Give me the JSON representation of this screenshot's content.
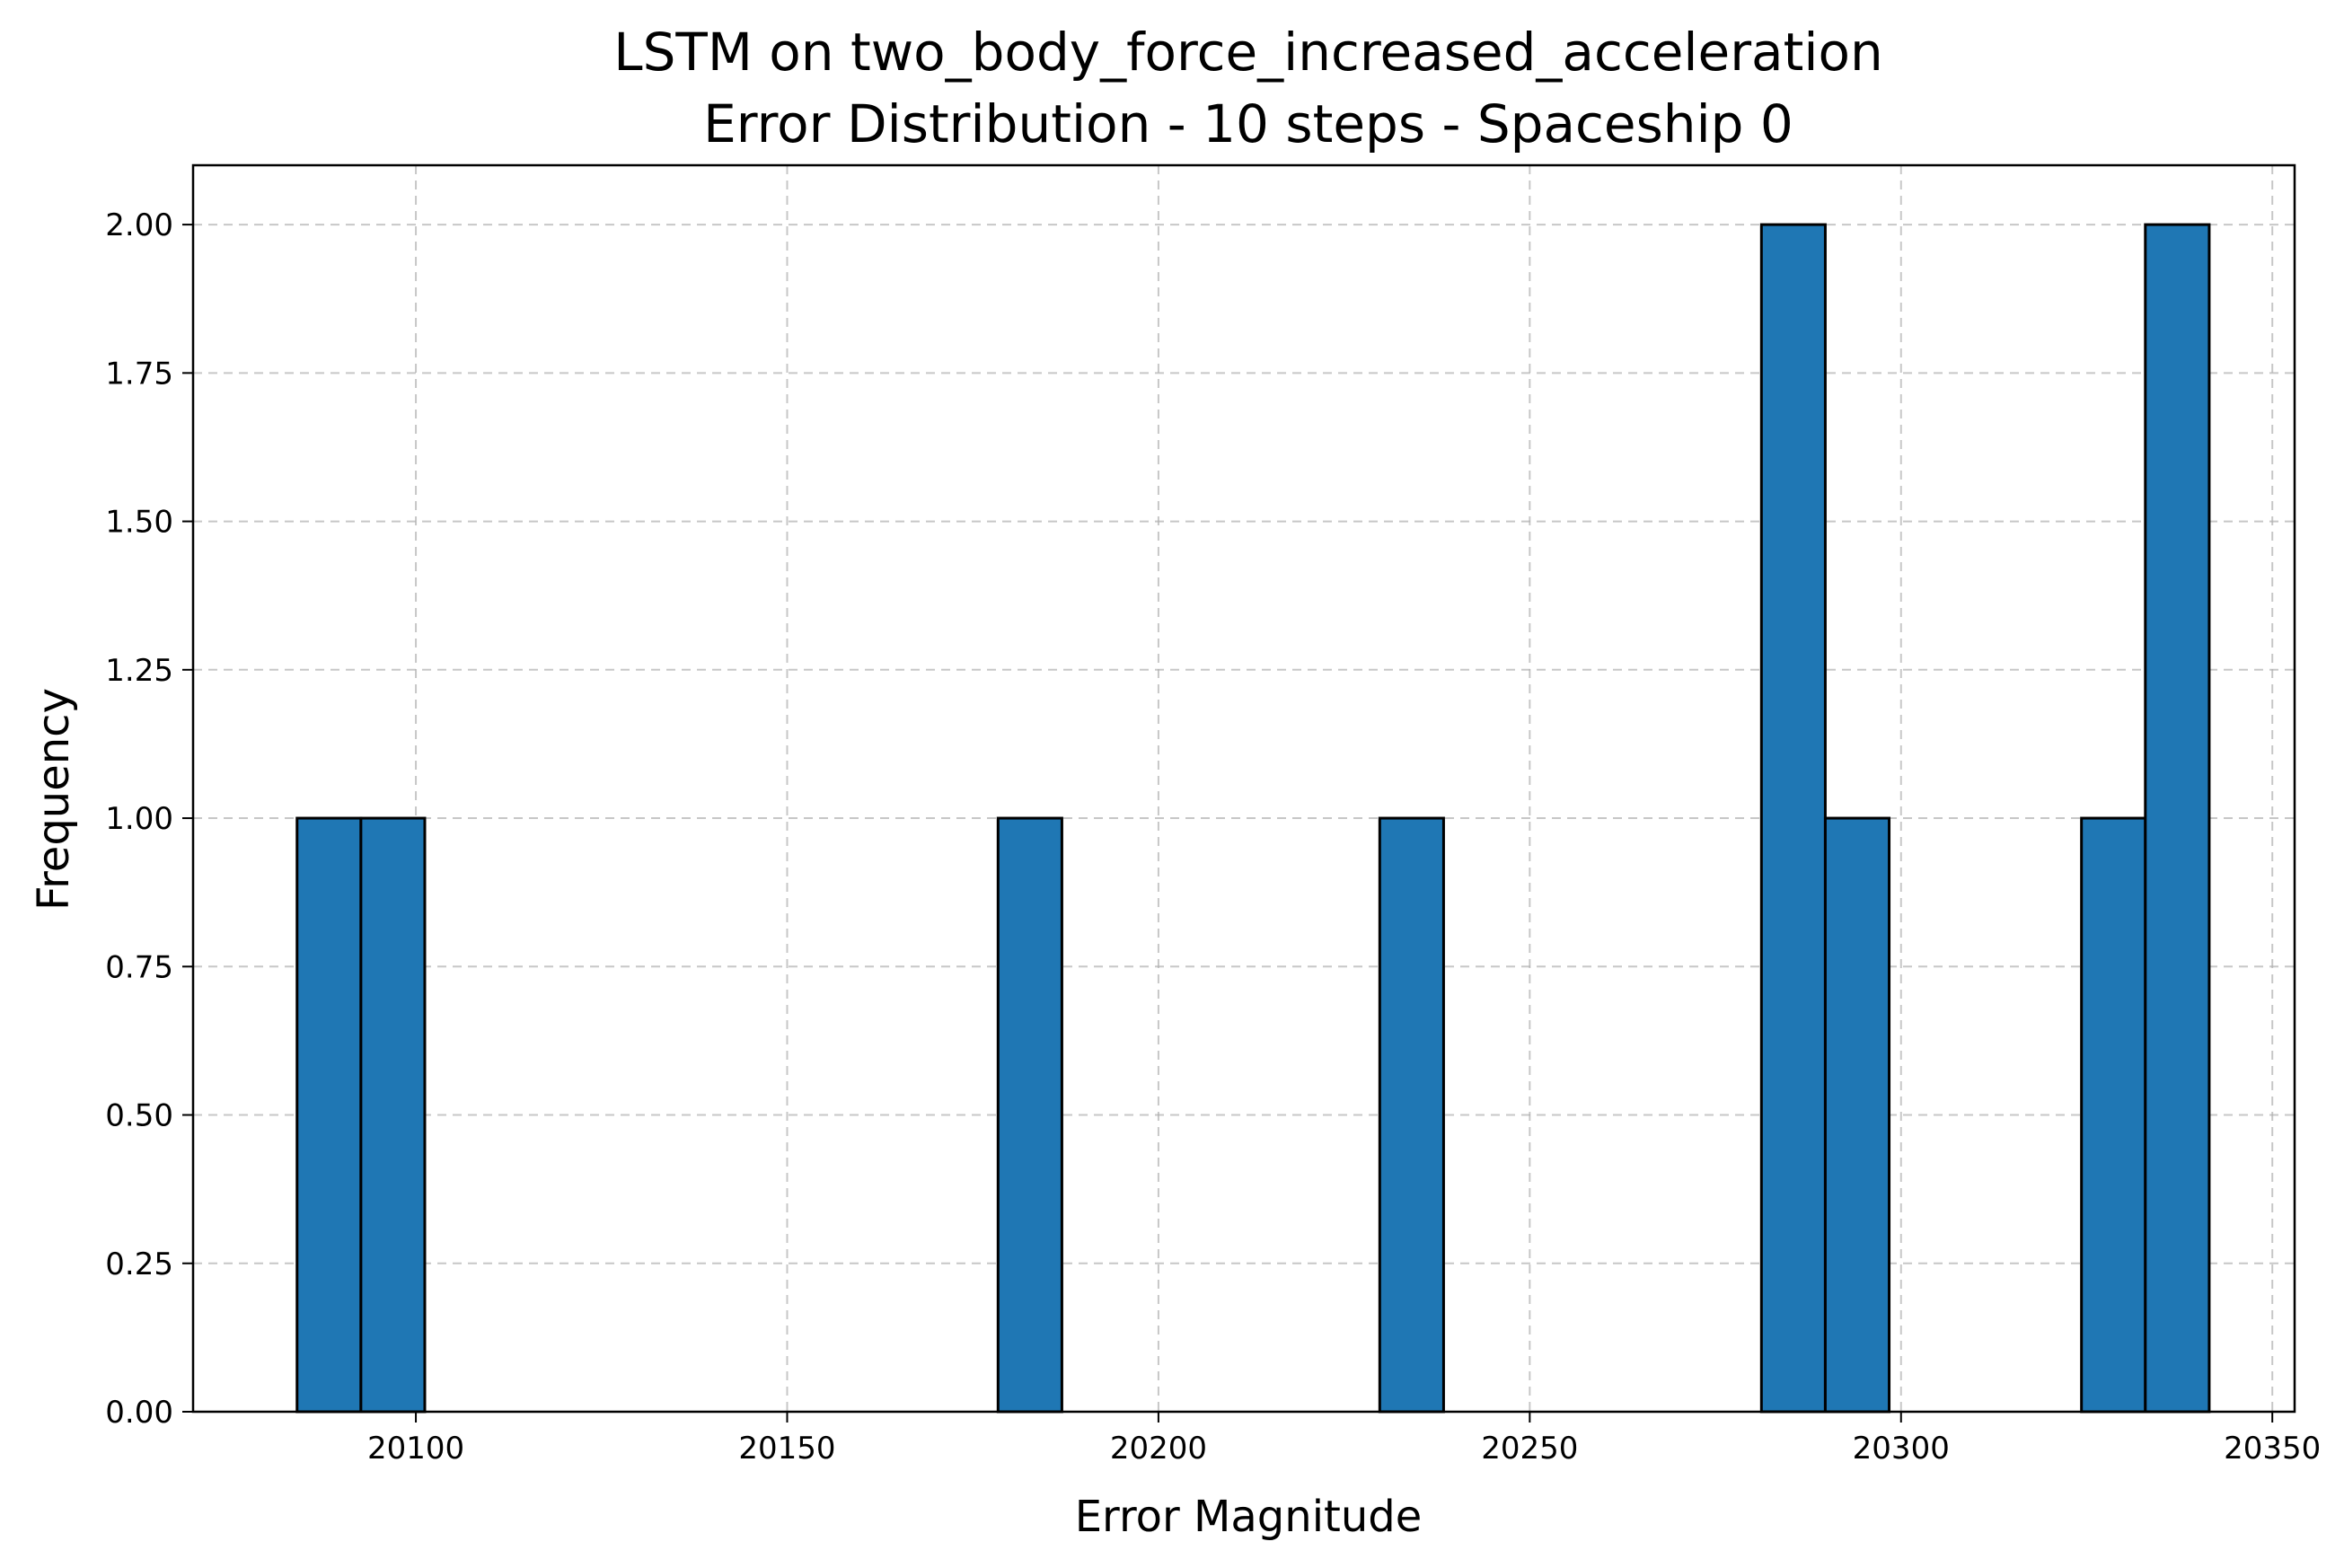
{
  "chart_data": {
    "type": "bar",
    "title_line1": "LSTM on two_body_force_increased_acceleration",
    "title_line2": "Error Distribution - 10 steps - Spaceship 0",
    "xlabel": "Error Magnitude",
    "ylabel": "Frequency",
    "xlim": [
      20070,
      20353
    ],
    "ylim": [
      0,
      2.1
    ],
    "x_ticks": [
      20100,
      20150,
      20200,
      20250,
      20300,
      20350
    ],
    "y_ticks": [
      0.0,
      0.25,
      0.5,
      0.75,
      1.0,
      1.25,
      1.5,
      1.75,
      2.0
    ],
    "bar_color": "#1f77b4",
    "grid": true,
    "bins": [
      {
        "start": 20084.0,
        "end": 20092.6,
        "count": 1
      },
      {
        "start": 20092.6,
        "end": 20101.2,
        "count": 1
      },
      {
        "start": 20178.4,
        "end": 20187.0,
        "count": 1
      },
      {
        "start": 20229.8,
        "end": 20238.4,
        "count": 1
      },
      {
        "start": 20281.2,
        "end": 20289.8,
        "count": 2
      },
      {
        "start": 20289.8,
        "end": 20298.4,
        "count": 1
      },
      {
        "start": 20324.3,
        "end": 20332.9,
        "count": 1
      },
      {
        "start": 20332.9,
        "end": 20341.5,
        "count": 2
      }
    ]
  }
}
